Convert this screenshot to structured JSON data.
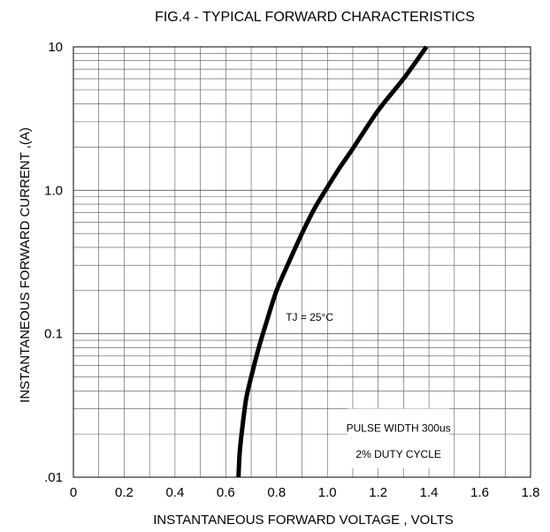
{
  "chart_data": {
    "type": "line",
    "title": "FIG.4 - TYPICAL FORWARD CHARACTERISTICS",
    "xlabel": "INSTANTANEOUS FORWARD VOLTAGE , VOLTS",
    "ylabel": "INSTANTANEOUS  FORWARD CURRENT ,(A)",
    "xlim": [
      0,
      1.8
    ],
    "ylim": [
      0.01,
      10
    ],
    "y_scale": "log",
    "grid": true,
    "x_ticks": [
      {
        "value": 0,
        "label": "0"
      },
      {
        "value": 0.2,
        "label": "0.2"
      },
      {
        "value": 0.4,
        "label": "0.4"
      },
      {
        "value": 0.6,
        "label": "0.6"
      },
      {
        "value": 0.8,
        "label": "0.8"
      },
      {
        "value": 1.0,
        "label": "1.0"
      },
      {
        "value": 1.2,
        "label": "1.2"
      },
      {
        "value": 1.4,
        "label": "1.4"
      },
      {
        "value": 1.6,
        "label": "1.6"
      },
      {
        "value": 1.8,
        "label": "1.8"
      }
    ],
    "y_ticks": [
      {
        "value": 0.01,
        "label": ".01"
      },
      {
        "value": 0.1,
        "label": "0.1"
      },
      {
        "value": 1,
        "label": "1.0"
      },
      {
        "value": 10,
        "label": "10"
      }
    ],
    "series": [
      {
        "color": "#000000",
        "x": [
          0.65,
          0.655,
          0.665,
          0.68,
          0.7,
          0.73,
          0.76,
          0.8,
          0.85,
          0.9,
          0.95,
          1.0,
          1.05,
          1.1,
          1.2,
          1.3,
          1.39
        ],
        "y": [
          0.01,
          0.015,
          0.022,
          0.035,
          0.05,
          0.08,
          0.12,
          0.2,
          0.32,
          0.5,
          0.75,
          1.05,
          1.45,
          1.95,
          3.6,
          6.0,
          10
        ]
      }
    ],
    "annotations": [
      {
        "text": "TJ = 25°C",
        "x": 0.93,
        "y": 0.13
      },
      {
        "text": "PULSE WIDTH 300us",
        "x": 1.28,
        "y": 0.022
      },
      {
        "text": "2% DUTY CYCLE",
        "x": 1.28,
        "y": 0.0145
      }
    ]
  }
}
